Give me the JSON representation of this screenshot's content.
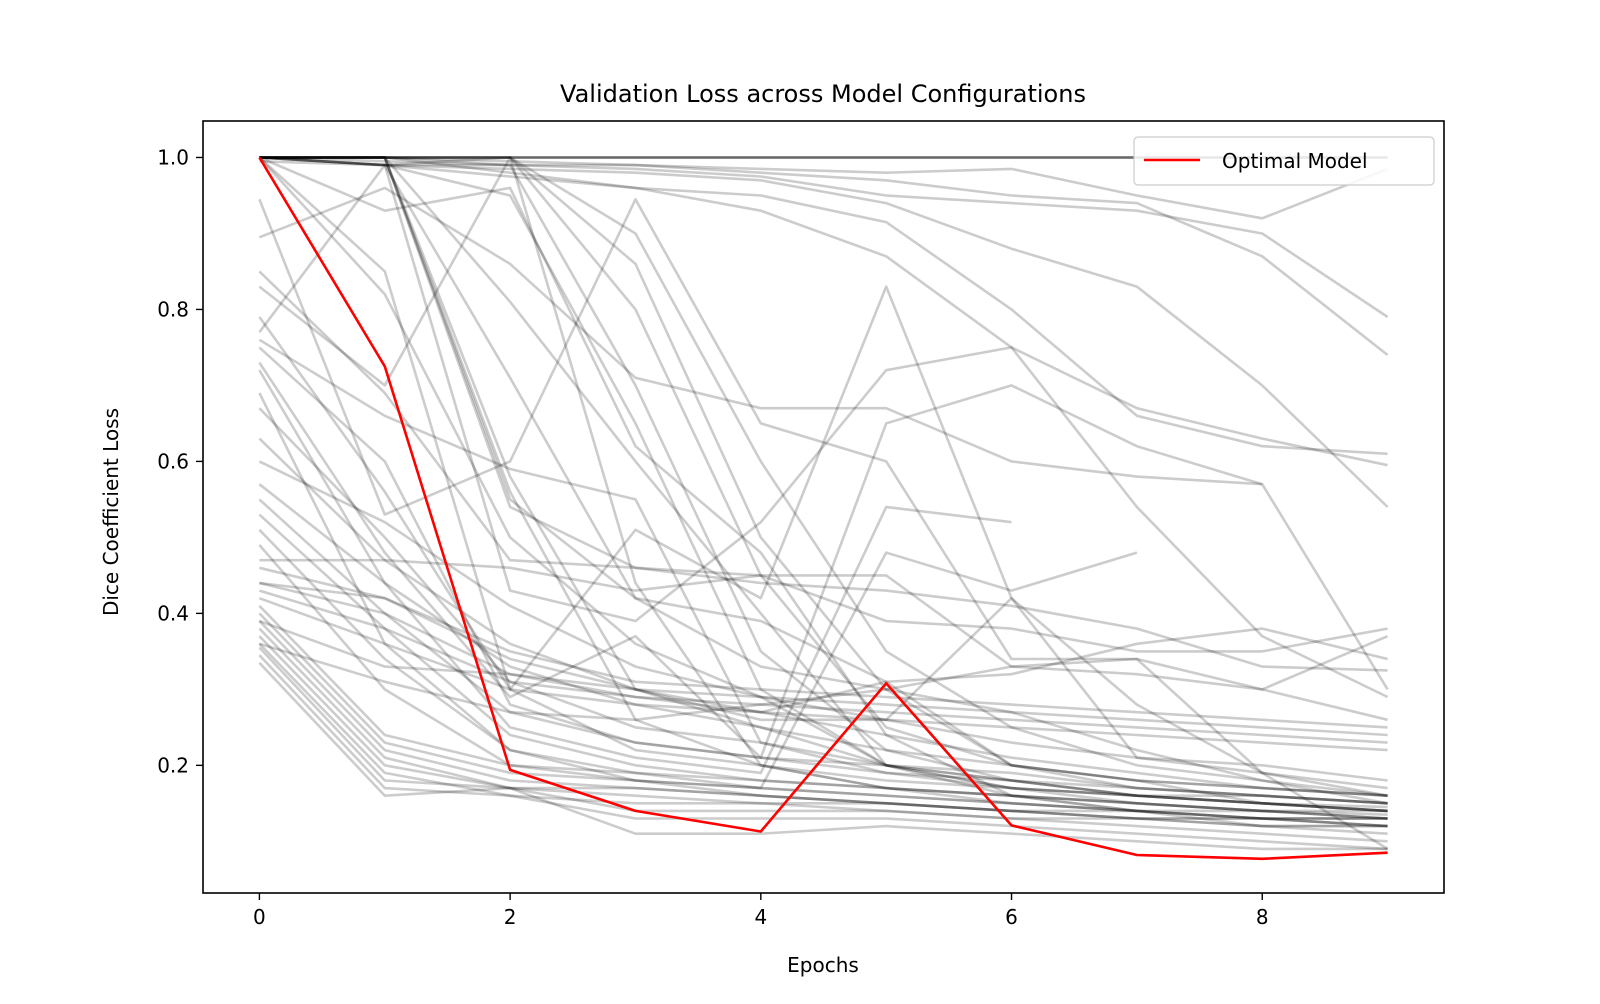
{
  "chart_data": {
    "type": "line",
    "title": "Validation Loss across Model Configurations",
    "xlabel": "Epochs",
    "ylabel": "Dice Coefficient Loss",
    "xlim": [
      -0.45,
      9.45
    ],
    "ylim": [
      0.032,
      1.048
    ],
    "xticks": [
      0,
      2,
      4,
      6,
      8
    ],
    "yticks": [
      0.2,
      0.4,
      0.6,
      0.8,
      1.0
    ],
    "xtick_labels": [
      "0",
      "2",
      "4",
      "6",
      "8"
    ],
    "ytick_labels": [
      "0.2",
      "0.4",
      "0.6",
      "0.8",
      "1.0"
    ],
    "grid": false,
    "legend": {
      "placement": "top-right",
      "entries": [
        "Optimal Model"
      ]
    },
    "colors": {
      "background_lines": "#000000",
      "highlight": "#ff0000"
    },
    "x": [
      0,
      1,
      2,
      3,
      4,
      5,
      6,
      7,
      8,
      9
    ],
    "series": [
      {
        "name": "Optimal Model",
        "highlight": true,
        "values": [
          1.0,
          0.725,
          0.194,
          0.14,
          0.113,
          0.308,
          0.121,
          0.082,
          0.077,
          0.085
        ]
      },
      {
        "values": [
          1.0,
          1.0,
          1.0,
          1.0,
          1.0,
          1.0,
          1.0,
          1.0,
          1.0,
          1.0
        ]
      },
      {
        "values": [
          1.0,
          1.0,
          1.0,
          1.0,
          1.0,
          1.0,
          1.0,
          1.0,
          1.0,
          1.0
        ]
      },
      {
        "values": [
          1.0,
          1.0,
          1.0,
          1.0,
          1.0,
          1.0,
          1.0,
          1.0,
          1.0,
          1.0
        ]
      },
      {
        "values": [
          1.0,
          1.0,
          1.0,
          1.0,
          1.0,
          1.0,
          1.0,
          1.0,
          1.0,
          1.0
        ]
      },
      {
        "values": [
          1.0,
          0.995,
          0.99,
          0.99,
          0.985,
          0.98,
          0.985,
          0.95,
          0.92,
          0.985
        ]
      },
      {
        "values": [
          1.0,
          0.99,
          0.985,
          0.98,
          0.97,
          0.94,
          0.88,
          0.83,
          0.7,
          0.54
        ]
      },
      {
        "values": [
          1.0,
          0.99,
          0.99,
          0.985,
          0.975,
          0.95,
          0.94,
          0.93,
          0.9,
          0.79
        ]
      },
      {
        "values": [
          1.0,
          1.0,
          0.995,
          0.99,
          0.98,
          0.97,
          0.95,
          0.94,
          0.87,
          0.74
        ]
      },
      {
        "values": [
          0.995,
          0.99,
          0.975,
          0.96,
          0.95,
          0.915,
          0.8,
          0.66,
          0.62,
          0.61
        ]
      },
      {
        "values": [
          1.0,
          1.0,
          0.98,
          0.96,
          0.93,
          0.87,
          0.75,
          0.67,
          0.63,
          0.595
        ]
      },
      {
        "values": [
          1.0,
          1.0,
          0.54,
          0.46,
          0.44,
          0.43,
          0.41,
          0.38,
          0.33,
          0.325
        ]
      },
      {
        "values": [
          1.0,
          1.0,
          0.55,
          0.42,
          0.33,
          0.3,
          0.27,
          0.22,
          0.18,
          0.15
        ]
      },
      {
        "values": [
          1.0,
          1.0,
          0.58,
          0.3,
          0.25,
          0.2,
          0.17,
          0.16,
          0.15,
          0.145
        ]
      },
      {
        "values": [
          1.0,
          1.0,
          0.56,
          0.26,
          0.2,
          0.17,
          0.16,
          0.15,
          0.14,
          0.135
        ]
      },
      {
        "values": [
          1.0,
          0.99,
          1.0,
          0.86,
          0.5,
          0.3,
          0.2,
          0.17,
          0.16,
          0.15
        ]
      },
      {
        "values": [
          1.0,
          1.0,
          1.0,
          0.9,
          0.6,
          0.35,
          0.25,
          0.2,
          0.18,
          0.16
        ]
      },
      {
        "values": [
          1.0,
          1.0,
          1.0,
          0.8,
          0.45,
          0.25,
          0.2,
          0.18,
          0.17,
          0.16
        ]
      },
      {
        "values": [
          1.0,
          1.0,
          0.99,
          0.7,
          0.35,
          0.22,
          0.18,
          0.16,
          0.15,
          0.14
        ]
      },
      {
        "values": [
          1.0,
          0.99,
          0.95,
          0.65,
          0.3,
          0.2,
          0.17,
          0.15,
          0.14,
          0.13
        ]
      },
      {
        "values": [
          1.0,
          0.99,
          0.71,
          0.42,
          0.39,
          0.31,
          0.2,
          0.18,
          0.15,
          0.14
        ]
      },
      {
        "values": [
          1.0,
          1.0,
          0.81,
          0.6,
          0.4,
          0.2,
          0.18,
          0.16,
          0.15,
          0.14
        ]
      },
      {
        "values": [
          1.0,
          0.93,
          0.96,
          0.62,
          0.48,
          0.24,
          0.16,
          0.14,
          0.12,
          0.12
        ]
      },
      {
        "values": [
          1.0,
          0.82,
          0.5,
          0.36,
          0.29,
          0.2,
          0.16,
          0.14,
          0.13,
          0.13
        ]
      },
      {
        "values": [
          1.0,
          0.85,
          0.3,
          0.22,
          0.2,
          0.18,
          0.17,
          0.16,
          0.16,
          0.15
        ]
      },
      {
        "values": [
          0.945,
          0.53,
          0.6,
          0.945,
          0.65,
          0.6,
          0.34,
          0.34,
          0.19,
          0.09
        ]
      },
      {
        "values": [
          0.895,
          0.96,
          0.86,
          0.71,
          0.67,
          0.67,
          0.6,
          0.58,
          0.57,
          null
        ]
      },
      {
        "values": [
          0.85,
          0.69,
          0.47,
          0.46,
          0.45,
          0.39,
          0.38,
          0.35,
          0.35,
          0.38
        ]
      },
      {
        "values": [
          0.83,
          0.7,
          1.0,
          0.44,
          0.2,
          0.17,
          0.15,
          0.14,
          0.13,
          0.12
        ]
      },
      {
        "values": [
          0.79,
          0.56,
          0.3,
          0.51,
          0.42,
          0.83,
          0.42,
          0.21,
          0.2,
          0.18
        ]
      },
      {
        "values": [
          0.77,
          0.99,
          0.43,
          0.39,
          0.52,
          0.72,
          0.75,
          0.54,
          0.37,
          0.29
        ]
      },
      {
        "values": [
          0.73,
          0.48,
          0.29,
          0.37,
          0.21,
          0.65,
          0.7,
          0.62,
          0.57,
          0.3
        ]
      },
      {
        "values": [
          0.72,
          0.44,
          0.25,
          0.21,
          0.19,
          0.54,
          0.52,
          null,
          null,
          null
        ]
      },
      {
        "values": [
          0.69,
          0.36,
          0.22,
          0.18,
          0.17,
          0.48,
          0.43,
          0.48,
          null,
          null
        ]
      },
      {
        "values": [
          0.67,
          0.5,
          0.31,
          0.25,
          0.23,
          0.2,
          0.18,
          0.16,
          0.15,
          0.14
        ]
      },
      {
        "values": [
          0.63,
          0.47,
          0.36,
          0.3,
          0.27,
          0.24,
          0.21,
          0.19,
          0.17,
          0.16
        ]
      },
      {
        "values": [
          0.6,
          0.52,
          0.41,
          0.33,
          0.29,
          0.26,
          0.23,
          0.21,
          0.19,
          0.17
        ]
      },
      {
        "values": [
          0.57,
          0.44,
          0.33,
          0.28,
          0.25,
          0.22,
          0.2,
          0.18,
          0.17,
          0.16
        ]
      },
      {
        "values": [
          0.55,
          0.4,
          0.27,
          0.23,
          0.21,
          0.19,
          0.17,
          0.16,
          0.15,
          0.14
        ]
      },
      {
        "values": [
          0.53,
          0.38,
          0.24,
          0.2,
          0.18,
          0.17,
          0.16,
          0.15,
          0.14,
          0.13
        ]
      },
      {
        "values": [
          0.51,
          0.34,
          0.22,
          0.19,
          0.17,
          0.16,
          0.15,
          0.14,
          0.13,
          0.13
        ]
      },
      {
        "values": [
          0.49,
          0.3,
          0.2,
          0.18,
          0.16,
          0.15,
          0.14,
          0.13,
          0.13,
          0.12
        ]
      },
      {
        "values": [
          0.47,
          0.47,
          0.46,
          0.43,
          0.45,
          0.45,
          0.33,
          0.32,
          0.3,
          0.26
        ]
      },
      {
        "values": [
          0.46,
          0.42,
          0.35,
          0.31,
          0.3,
          0.29,
          0.28,
          0.27,
          0.26,
          0.25
        ]
      },
      {
        "values": [
          0.44,
          0.4,
          0.32,
          0.3,
          0.29,
          0.28,
          0.27,
          0.26,
          0.25,
          0.24
        ]
      },
      {
        "values": [
          0.43,
          0.38,
          0.31,
          0.29,
          0.28,
          0.27,
          0.26,
          0.25,
          0.24,
          0.23
        ]
      },
      {
        "values": [
          0.42,
          0.36,
          0.3,
          0.28,
          0.27,
          0.26,
          0.25,
          0.24,
          0.23,
          0.22
        ]
      },
      {
        "values": [
          0.41,
          0.24,
          0.2,
          0.19,
          0.18,
          0.17,
          0.16,
          0.15,
          0.14,
          0.14
        ]
      },
      {
        "values": [
          0.4,
          0.23,
          0.19,
          0.18,
          0.17,
          0.16,
          0.15,
          0.14,
          0.14,
          0.13
        ]
      },
      {
        "values": [
          0.39,
          0.22,
          0.18,
          0.17,
          0.16,
          0.15,
          0.14,
          0.14,
          0.13,
          0.13
        ]
      },
      {
        "values": [
          0.38,
          0.21,
          0.17,
          0.17,
          0.16,
          0.15,
          0.14,
          0.13,
          0.13,
          0.12
        ]
      },
      {
        "values": [
          0.37,
          0.2,
          0.17,
          0.16,
          0.15,
          0.15,
          0.14,
          0.13,
          0.12,
          0.12
        ]
      },
      {
        "values": [
          0.36,
          0.19,
          0.16,
          0.15,
          0.15,
          0.14,
          0.13,
          0.13,
          0.12,
          0.11
        ]
      },
      {
        "values": [
          0.355,
          0.18,
          0.17,
          0.14,
          0.14,
          0.14,
          0.13,
          0.12,
          0.11,
          0.1
        ]
      },
      {
        "values": [
          0.345,
          0.17,
          0.16,
          0.13,
          0.13,
          0.13,
          0.12,
          0.11,
          0.1,
          0.09
        ]
      },
      {
        "values": [
          0.335,
          0.16,
          0.17,
          0.11,
          0.11,
          0.12,
          0.11,
          0.1,
          0.09,
          0.09
        ]
      },
      {
        "values": [
          0.36,
          0.31,
          0.27,
          0.26,
          0.28,
          0.3,
          0.33,
          0.34,
          0.3,
          0.37
        ]
      },
      {
        "values": [
          0.39,
          0.33,
          0.32,
          0.29,
          0.27,
          0.31,
          0.32,
          0.36,
          0.38,
          0.34
        ]
      },
      {
        "values": [
          0.44,
          0.42,
          0.34,
          0.3,
          0.26,
          0.26,
          0.42,
          0.28,
          0.19,
          0.16
        ]
      },
      {
        "values": [
          0.76,
          0.66,
          0.59,
          0.55,
          0.23,
          0.19,
          0.18,
          0.17,
          0.16,
          0.15
        ]
      },
      {
        "values": [
          0.75,
          0.6,
          0.28,
          0.23,
          0.21,
          0.2,
          0.19,
          0.17,
          0.16,
          0.15
        ]
      }
    ]
  }
}
